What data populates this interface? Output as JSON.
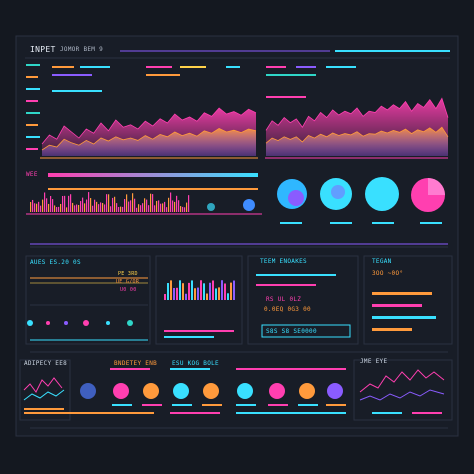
{
  "header": {
    "title": "INPET",
    "subtitle": "JOMOR BEM 9"
  },
  "labels": {
    "strip_label": "WEE",
    "mid_left_title": "AUES  ES.20  0S",
    "mid_left_values": [
      "PE 3RD",
      "UE G/OR",
      "U0 00"
    ],
    "mid_right_title": "TEEM ENOAKES",
    "mid_right_values": [
      "RS  UL  0LZ",
      "0.0EQ  0G3  00",
      "S8S  S8  SE0000"
    ],
    "far_right_title": "TEGAN",
    "far_right_value": "3OO ~0O°",
    "bottom_left_title": "ADIPECY  EE8",
    "bottom_mid_title": "BNDETEY ENB",
    "bottom_mid2_title": "ESU KOG  BOLE",
    "bottom_right_title": "JME  EYE"
  },
  "colors": {
    "magenta": "#ff3fb0",
    "cyan": "#39e0ff",
    "teal": "#2fd6c8",
    "orange": "#ff9a3c",
    "purple": "#8a5cff",
    "yellow": "#ffd24a",
    "blue": "#3f8cff"
  },
  "chart_data": [
    {
      "type": "area",
      "title": "",
      "note": "top-left area chart",
      "series": [
        {
          "values": [
            20,
            35,
            28,
            50,
            40,
            30,
            45,
            38,
            55,
            42,
            60,
            48,
            52,
            45,
            58,
            50,
            62,
            55,
            70,
            60,
            65,
            58,
            72,
            66,
            80,
            70,
            74,
            68,
            78,
            72
          ]
        },
        {
          "values": [
            10,
            18,
            15,
            28,
            22,
            18,
            26,
            20,
            30,
            25,
            32,
            27,
            30,
            26,
            34,
            28,
            36,
            32,
            40,
            34,
            38,
            33,
            42,
            38,
            46,
            40,
            43,
            39,
            45,
            42
          ]
        }
      ]
    },
    {
      "type": "area",
      "title": "",
      "note": "top-right area chart",
      "series": [
        {
          "values": [
            40,
            55,
            48,
            60,
            52,
            58,
            45,
            62,
            55,
            68,
            60,
            72,
            64,
            70,
            66,
            75,
            62,
            70,
            68,
            78,
            72,
            80,
            74,
            85,
            70,
            82,
            76,
            88,
            74,
            90,
            60
          ]
        },
        {
          "values": [
            20,
            28,
            24,
            30,
            26,
            30,
            22,
            32,
            28,
            34,
            30,
            36,
            32,
            35,
            33,
            38,
            31,
            35,
            34,
            39,
            36,
            40,
            37,
            42,
            35,
            41,
            38,
            44,
            37,
            45,
            30
          ]
        }
      ]
    }
  ]
}
